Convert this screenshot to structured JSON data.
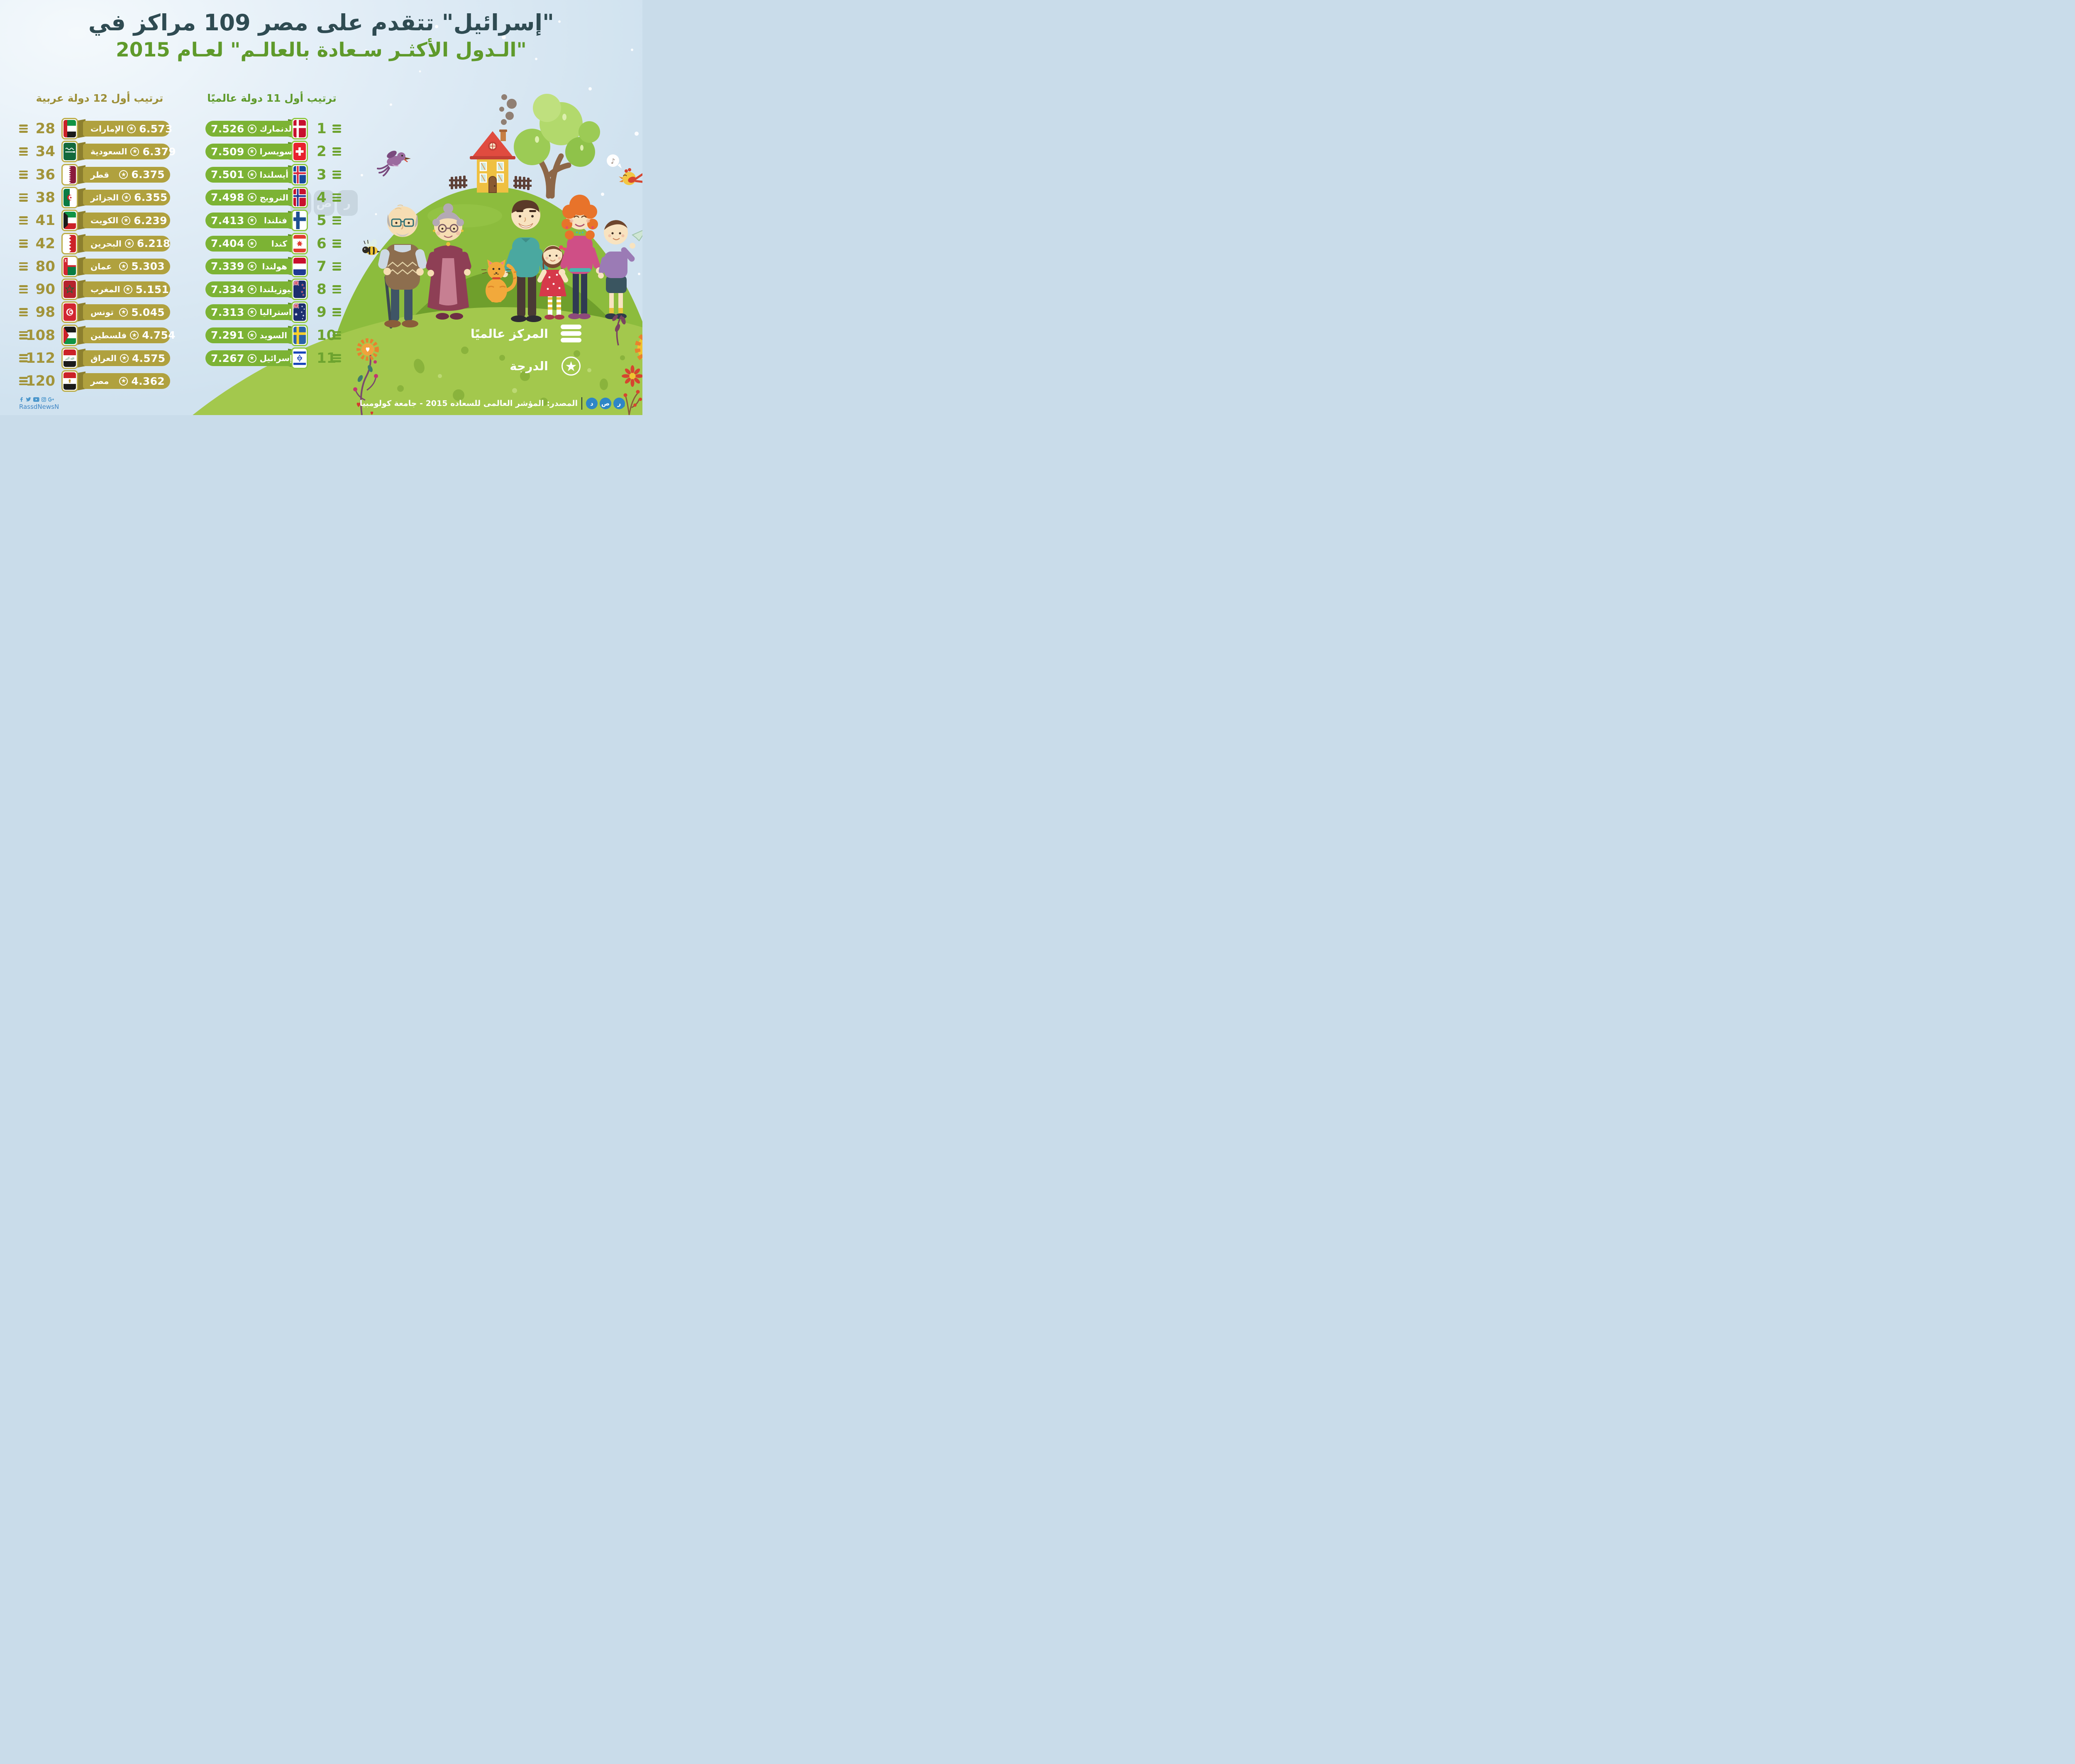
{
  "title": {
    "line1": "\"إسرائيل\" تتقدم على مصر 109 مراكز في",
    "line2": "\"الـدول الأكثـر سـعادة بالعالـم\" لعـام 2015"
  },
  "legend": {
    "rank_label": "المركز عالميًا",
    "score_label": "الدرجة"
  },
  "source": {
    "label": "المصدر: المؤشر العالمى للسعاده 2015 - جامعة كولومبيا",
    "brand": "رصد"
  },
  "footer": {
    "social_handle": "RassdNewsN",
    "social_icons": [
      "facebook",
      "twitter",
      "youtube",
      "instagram",
      "google-plus"
    ]
  },
  "watermark": "رصد",
  "colors": {
    "title_dark": "#2f4b52",
    "title_green": "#5f9a2b",
    "arab_olive": "#b0a13e",
    "arab_olive_dark": "#8c7f2e",
    "arab_text": "#a2943a",
    "world_green": "#7cb334",
    "world_green_dark": "#5d8c26",
    "world_text": "#6da32f",
    "sky": "#dcebf5",
    "hill_green": "#a3c84d",
    "hill_dark": "#6f9f2c",
    "brand_blue": "#2e86c6"
  },
  "chart_data": {
    "type": "table",
    "title": "\"إسرائيل\" تتقدم على مصر 109 مراكز في \"الـدول الأكثـر سـعادة بالعالـم\" لعـام 2015",
    "series": [
      {
        "name": "ترتيب أول 11 دولة عالميًا",
        "key": "world",
        "columns": [
          "المركز عالميًا",
          "الدولة",
          "الدرجة"
        ],
        "points": [
          {
            "rank": 1,
            "country": "الدنمارك",
            "score": 7.526,
            "flag": "denmark"
          },
          {
            "rank": 2,
            "country": "سويسرا",
            "score": 7.509,
            "flag": "switzerland"
          },
          {
            "rank": 3,
            "country": "أيسلندا",
            "score": 7.501,
            "flag": "iceland"
          },
          {
            "rank": 4,
            "country": "النرويج",
            "score": 7.498,
            "flag": "norway"
          },
          {
            "rank": 5,
            "country": "فنلندا",
            "score": 7.413,
            "flag": "finland"
          },
          {
            "rank": 6,
            "country": "كندا",
            "score": 7.404,
            "flag": "canada"
          },
          {
            "rank": 7,
            "country": "هولندا",
            "score": 7.339,
            "flag": "netherlands"
          },
          {
            "rank": 8,
            "country": "نيوزيلندا",
            "score": 7.334,
            "flag": "newzealand"
          },
          {
            "rank": 9,
            "country": "استراليا",
            "score": 7.313,
            "flag": "australia"
          },
          {
            "rank": 10,
            "country": "السويد",
            "score": 7.291,
            "flag": "sweden"
          },
          {
            "rank": 11,
            "country": "إسرائيل",
            "score": 7.267,
            "flag": "israel"
          }
        ]
      },
      {
        "name": "ترتيب أول 12 دولة عربية",
        "key": "arab",
        "columns": [
          "المركز عالميًا",
          "الدولة",
          "الدرجة"
        ],
        "points": [
          {
            "rank": 28,
            "country": "الإمارات",
            "score": 6.573,
            "flag": "uae"
          },
          {
            "rank": 34,
            "country": "السعودية",
            "score": 6.379,
            "flag": "saudi"
          },
          {
            "rank": 36,
            "country": "قطر",
            "score": 6.375,
            "flag": "qatar"
          },
          {
            "rank": 38,
            "country": "الجزائر",
            "score": 6.355,
            "flag": "algeria"
          },
          {
            "rank": 41,
            "country": "الكويت",
            "score": 6.239,
            "flag": "kuwait"
          },
          {
            "rank": 42,
            "country": "البحرين",
            "score": 6.218,
            "flag": "bahrain"
          },
          {
            "rank": 80,
            "country": "عمان",
            "score": 5.303,
            "flag": "oman"
          },
          {
            "rank": 90,
            "country": "المغرب",
            "score": 5.151,
            "flag": "morocco"
          },
          {
            "rank": 98,
            "country": "تونس",
            "score": 5.045,
            "flag": "tunisia"
          },
          {
            "rank": 108,
            "country": "فلسطين",
            "score": 4.754,
            "flag": "palestine"
          },
          {
            "rank": 112,
            "country": "العراق",
            "score": 4.575,
            "flag": "iraq"
          },
          {
            "rank": 120,
            "country": "مصر",
            "score": 4.362,
            "flag": "egypt"
          }
        ]
      }
    ]
  }
}
